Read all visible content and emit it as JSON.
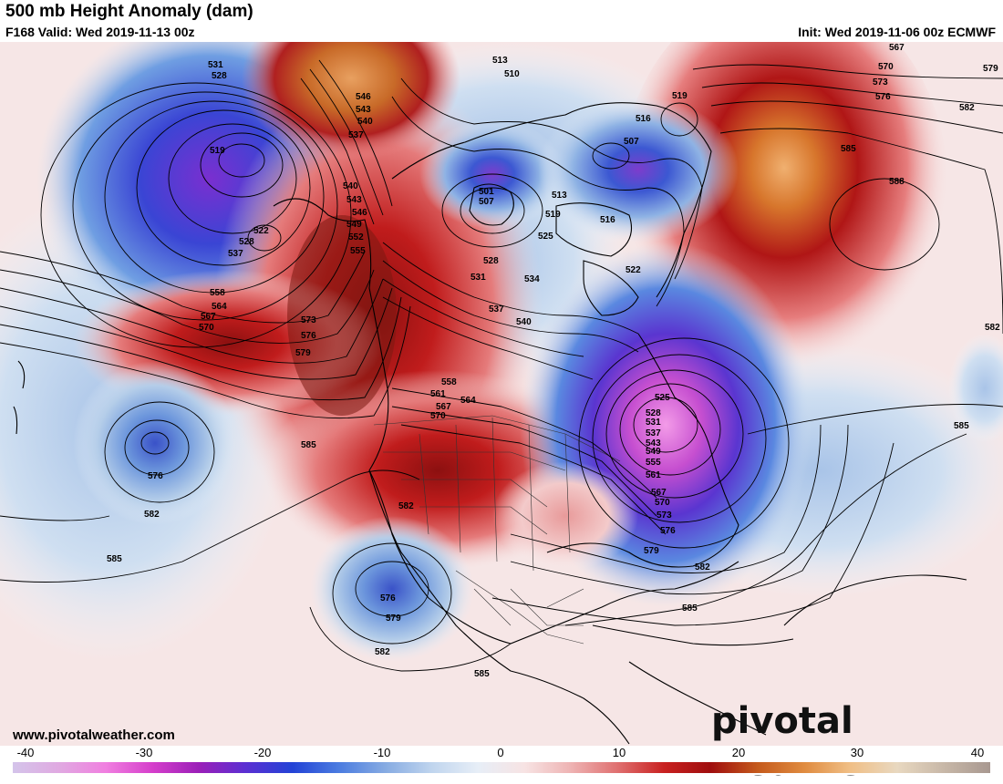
{
  "header": {
    "title": "500 mb Height Anomaly (dam)",
    "valid": "F168 Valid: Wed 2019-11-13 00z",
    "init": "Init: Wed 2019-11-06 00z ECMWF"
  },
  "footer": {
    "website": "www.pivotalweather.com",
    "brand": "pivotal weather"
  },
  "colorbar": {
    "ticks": [
      "-40",
      "-30",
      "-20",
      "-10",
      "0",
      "10",
      "20",
      "30",
      "40"
    ],
    "colors": [
      "#d4c4ea",
      "#e0a9e1",
      "#f07fe0",
      "#d53ecb",
      "#9b1fb8",
      "#5b2fd2",
      "#2343d6",
      "#4a7be0",
      "#86abe2",
      "#c0d5ee",
      "#e7eef7",
      "#f7e3e3",
      "#eeb3b3",
      "#df6f6f",
      "#c8201f",
      "#9f0e0e",
      "#c55a1c",
      "#e08c40",
      "#f0bf86",
      "#e8d8c0",
      "#c8b8a8",
      "#a89890"
    ]
  },
  "contour_labels": [
    {
      "text": "531"
    },
    {
      "text": "528"
    },
    {
      "text": "519"
    },
    {
      "text": "522"
    },
    {
      "text": "528"
    },
    {
      "text": "537"
    },
    {
      "text": "558"
    },
    {
      "text": "564"
    },
    {
      "text": "567"
    },
    {
      "text": "570"
    },
    {
      "text": "573"
    },
    {
      "text": "576"
    },
    {
      "text": "579"
    },
    {
      "text": "546"
    },
    {
      "text": "543"
    },
    {
      "text": "540"
    },
    {
      "text": "537"
    },
    {
      "text": "540"
    },
    {
      "text": "543"
    },
    {
      "text": "546"
    },
    {
      "text": "549"
    },
    {
      "text": "552"
    },
    {
      "text": "555"
    },
    {
      "text": "513"
    },
    {
      "text": "510"
    },
    {
      "text": "501"
    },
    {
      "text": "507"
    },
    {
      "text": "513"
    },
    {
      "text": "519"
    },
    {
      "text": "525"
    },
    {
      "text": "528"
    },
    {
      "text": "531"
    },
    {
      "text": "534"
    },
    {
      "text": "537"
    },
    {
      "text": "540"
    },
    {
      "text": "519"
    },
    {
      "text": "516"
    },
    {
      "text": "507"
    },
    {
      "text": "516"
    },
    {
      "text": "522"
    },
    {
      "text": "567"
    },
    {
      "text": "570"
    },
    {
      "text": "573"
    },
    {
      "text": "576"
    },
    {
      "text": "579"
    },
    {
      "text": "582"
    },
    {
      "text": "585"
    },
    {
      "text": "588"
    },
    {
      "text": "582"
    },
    {
      "text": "558"
    },
    {
      "text": "561"
    },
    {
      "text": "564"
    },
    {
      "text": "567"
    },
    {
      "text": "570"
    },
    {
      "text": "525"
    },
    {
      "text": "528"
    },
    {
      "text": "531"
    },
    {
      "text": "537"
    },
    {
      "text": "543"
    },
    {
      "text": "549"
    },
    {
      "text": "555"
    },
    {
      "text": "561"
    },
    {
      "text": "567"
    },
    {
      "text": "570"
    },
    {
      "text": "573"
    },
    {
      "text": "576"
    },
    {
      "text": "579"
    },
    {
      "text": "582"
    },
    {
      "text": "585"
    },
    {
      "text": "585"
    },
    {
      "text": "576"
    },
    {
      "text": "582"
    },
    {
      "text": "585"
    },
    {
      "text": "585"
    },
    {
      "text": "582"
    },
    {
      "text": "576"
    },
    {
      "text": "579"
    },
    {
      "text": "582"
    },
    {
      "text": "585"
    }
  ]
}
